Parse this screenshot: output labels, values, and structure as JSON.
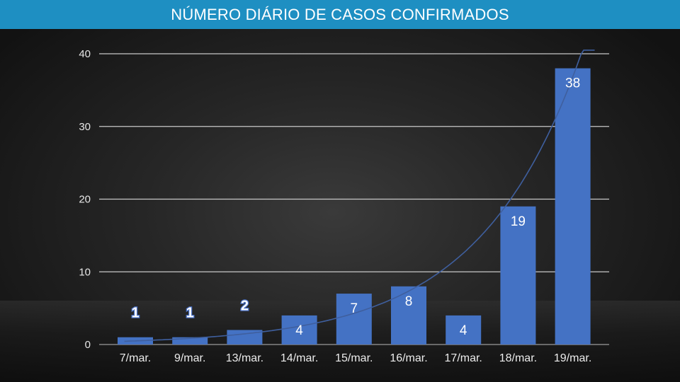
{
  "title": "NÚMERO DIÁRIO DE CASOS CONFIRMADOS",
  "chart_data": {
    "type": "bar",
    "categories": [
      "7/mar.",
      "9/mar.",
      "13/mar.",
      "14/mar.",
      "15/mar.",
      "16/mar.",
      "17/mar.",
      "18/mar.",
      "19/mar."
    ],
    "values": [
      1,
      1,
      2,
      4,
      7,
      8,
      4,
      19,
      38
    ],
    "data_labels": [
      "1",
      "1",
      "2",
      "4",
      "7",
      "8",
      "4",
      "19",
      "38"
    ],
    "ylim": [
      0,
      40
    ],
    "yticks": [
      "0",
      "10",
      "20",
      "30",
      "40"
    ],
    "grid": true,
    "trendline": "exponential",
    "colors": {
      "bar": "#4472c4",
      "trendline": "#3f5f9e",
      "grid": "#c8c8c8",
      "title_bar": "#1e8fc2"
    }
  }
}
